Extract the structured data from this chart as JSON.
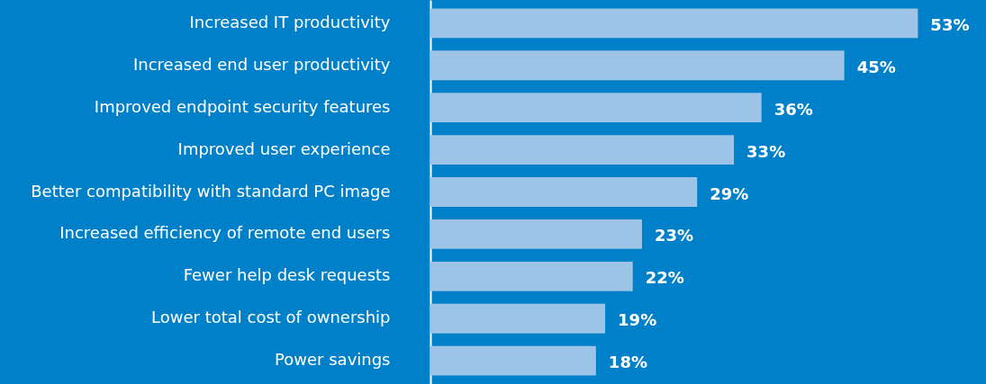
{
  "chart_data": {
    "type": "bar",
    "orientation": "horizontal",
    "categories": [
      "Increased IT productivity",
      "Increased end user productivity",
      "Improved endpoint security features",
      "Improved user experience",
      "Better compatibility with standard PC image",
      "Increased efficiency of remote end users",
      "Fewer help desk requests",
      "Lower total cost of ownership",
      "Power savings"
    ],
    "values": [
      53,
      45,
      36,
      33,
      29,
      23,
      22,
      19,
      18
    ],
    "color": "#9dc3e6",
    "value_labels": [
      "53%",
      "45%",
      "36%",
      "33%",
      "29%",
      "23%",
      "22%",
      "19%",
      "18%"
    ]
  }
}
